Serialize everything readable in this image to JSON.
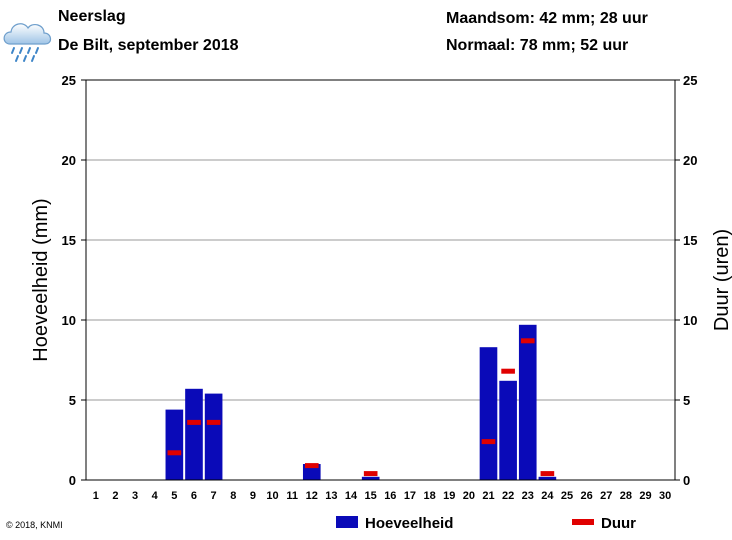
{
  "header": {
    "title": "Neerslag",
    "subtitle": "De Bilt, september 2018",
    "month_sum": "Maandsom: 42 mm; 28 uur",
    "normal": "Normaal: 78 mm; 52 uur",
    "icon": "rain-cloud-icon"
  },
  "footer": {
    "copyright": "© 2018, KNMI"
  },
  "colors": {
    "amount": "#0a0ab8",
    "duration": "#e00000",
    "grid": "#9a9a9a"
  },
  "chart_data": {
    "type": "bar",
    "categories": [
      "1",
      "2",
      "3",
      "4",
      "5",
      "6",
      "7",
      "8",
      "9",
      "10",
      "11",
      "12",
      "13",
      "14",
      "15",
      "16",
      "17",
      "18",
      "19",
      "20",
      "21",
      "22",
      "23",
      "24",
      "25",
      "26",
      "27",
      "28",
      "29",
      "30"
    ],
    "series": [
      {
        "name": "Hoeveelheid",
        "axis": "left",
        "kind": "bar",
        "values": [
          0,
          0,
          0,
          0,
          4.4,
          5.7,
          5.4,
          0,
          0,
          0,
          0,
          1.0,
          0,
          0,
          0.2,
          0,
          0,
          0,
          0,
          0,
          8.3,
          6.2,
          9.7,
          0.2,
          0,
          0,
          0,
          0,
          0,
          0
        ]
      },
      {
        "name": "Duur",
        "axis": "right",
        "kind": "marker",
        "values": [
          0,
          0,
          0,
          0,
          1.7,
          3.6,
          3.6,
          0,
          0,
          0,
          0,
          0.9,
          0,
          0,
          0.4,
          0,
          0,
          0,
          0,
          0,
          2.4,
          6.8,
          8.7,
          0.4,
          0,
          0,
          0,
          0,
          0,
          0
        ]
      }
    ],
    "ylabel": "Hoeveelheid (mm)",
    "y2label": "Duur (uren)",
    "ylim": [
      0,
      25
    ],
    "y2lim": [
      0,
      25
    ],
    "yticks": [
      0,
      5,
      10,
      15,
      20,
      25
    ],
    "grid": true,
    "legend": {
      "position": "bottom",
      "items": [
        "Hoeveelheid",
        "Duur"
      ]
    }
  }
}
